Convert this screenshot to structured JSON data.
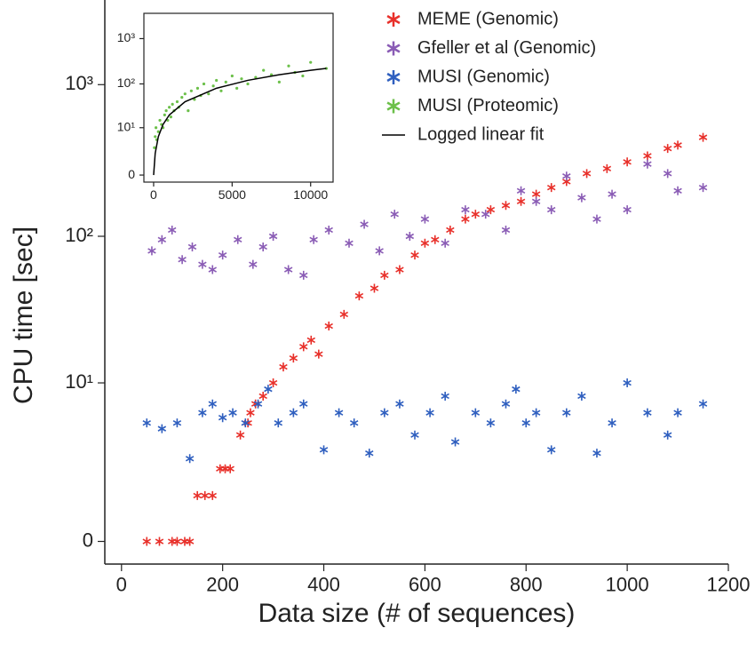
{
  "chart_data": [
    {
      "type": "scatter",
      "xlabel": "Data size (# of sequences)",
      "ylabel": "CPU time [sec]",
      "yscale": "log1p",
      "xlim": [
        -33,
        1200
      ],
      "ylim": [
        -0.29,
        3600
      ],
      "xticks": [
        0,
        200,
        400,
        600,
        800,
        1000,
        1200
      ],
      "yticks": [
        0,
        {
          "value": 10,
          "label": "10¹"
        },
        {
          "value": 100,
          "label": "10²"
        },
        {
          "value": 1000,
          "label": "10³"
        }
      ],
      "legend": "upper right",
      "series": [
        {
          "name": "MEME (Genomic)",
          "color": "#e8302a",
          "x": [
            50,
            75,
            100,
            110,
            125,
            135,
            150,
            165,
            180,
            195,
            205,
            215,
            235,
            250,
            255,
            265,
            280,
            300,
            320,
            340,
            360,
            375,
            390,
            410,
            440,
            470,
            500,
            520,
            550,
            580,
            600,
            620,
            650,
            680,
            700,
            730,
            760,
            790,
            820,
            850,
            880,
            920,
            960,
            1000,
            1040,
            1080,
            1100,
            1150
          ],
          "values": [
            0,
            0,
            0,
            0,
            0,
            0,
            1,
            1,
            1,
            2,
            2,
            2,
            4,
            5,
            6,
            7,
            8,
            10,
            13,
            15,
            18,
            20,
            16,
            25,
            30,
            40,
            45,
            55,
            60,
            75,
            90,
            95,
            110,
            130,
            140,
            150,
            160,
            170,
            190,
            210,
            230,
            260,
            280,
            310,
            340,
            380,
            400,
            450
          ]
        },
        {
          "name": "Gfeller et al (Genomic)",
          "color": "#8a5cb5",
          "x": [
            60,
            80,
            100,
            120,
            140,
            160,
            180,
            200,
            230,
            260,
            280,
            300,
            330,
            360,
            380,
            410,
            450,
            480,
            510,
            540,
            570,
            600,
            640,
            680,
            720,
            760,
            790,
            820,
            850,
            880,
            910,
            940,
            970,
            1000,
            1040,
            1080,
            1100,
            1150
          ],
          "values": [
            80,
            95,
            110,
            70,
            85,
            65,
            60,
            75,
            95,
            65,
            85,
            100,
            60,
            55,
            95,
            110,
            90,
            120,
            80,
            140,
            100,
            130,
            90,
            150,
            140,
            110,
            200,
            170,
            150,
            250,
            180,
            130,
            190,
            150,
            300,
            260,
            200,
            210
          ]
        },
        {
          "name": "MUSI (Genomic)",
          "color": "#2f5fbf",
          "x": [
            50,
            80,
            110,
            135,
            160,
            180,
            200,
            220,
            245,
            270,
            290,
            310,
            340,
            360,
            400,
            430,
            460,
            490,
            520,
            550,
            580,
            610,
            640,
            660,
            700,
            730,
            760,
            780,
            800,
            820,
            850,
            880,
            910,
            940,
            970,
            1000,
            1040,
            1080,
            1100,
            1150
          ],
          "values": [
            5,
            4.5,
            5,
            2.5,
            6,
            7,
            5.5,
            6,
            5,
            7,
            9,
            5,
            6,
            7,
            3,
            6,
            5,
            2.8,
            6,
            7,
            4,
            6,
            8,
            3.5,
            6,
            5,
            7,
            9,
            5,
            6,
            3,
            6,
            8,
            2.8,
            5,
            10,
            6,
            4,
            6,
            7
          ]
        }
      ]
    },
    {
      "type": "scatter",
      "yscale": "log1p",
      "xlim": [
        -620,
        11430
      ],
      "ylim": [
        -0.3,
        3600
      ],
      "xticks": [
        0,
        5000,
        10000
      ],
      "yticks": [
        0,
        {
          "value": 10,
          "label": "10¹"
        },
        {
          "value": 100,
          "label": "10²"
        },
        {
          "value": 1000,
          "label": "10³"
        }
      ],
      "series": [
        {
          "name": "MUSI (Proteomic)",
          "color": "#6cc04a",
          "mode": "markers",
          "x": [
            50,
            100,
            150,
            200,
            300,
            400,
            500,
            600,
            700,
            800,
            900,
            1000,
            1100,
            1200,
            1300,
            1500,
            1600,
            1800,
            2000,
            2200,
            2400,
            2600,
            2800,
            3000,
            3200,
            3500,
            3800,
            4000,
            4300,
            4600,
            5000,
            5300,
            5600,
            6000,
            6500,
            7000,
            7500,
            8000,
            8600,
            9000,
            9500,
            10000,
            11000
          ],
          "values": [
            3,
            6,
            10,
            5,
            8,
            15,
            12,
            10,
            20,
            25,
            15,
            30,
            18,
            35,
            25,
            40,
            30,
            50,
            60,
            25,
            70,
            45,
            80,
            55,
            100,
            60,
            90,
            120,
            70,
            110,
            150,
            80,
            130,
            100,
            140,
            200,
            160,
            110,
            250,
            180,
            150,
            300,
            220
          ]
        },
        {
          "name": "Logged linear fit",
          "color": "#000000",
          "mode": "line",
          "x": [
            0,
            100,
            300,
            600,
            1000,
            2000,
            4000,
            6000,
            8000,
            10000,
            11000
          ],
          "values": [
            0,
            2,
            6,
            12,
            20,
            40,
            80,
            120,
            160,
            200,
            220
          ]
        }
      ]
    }
  ]
}
